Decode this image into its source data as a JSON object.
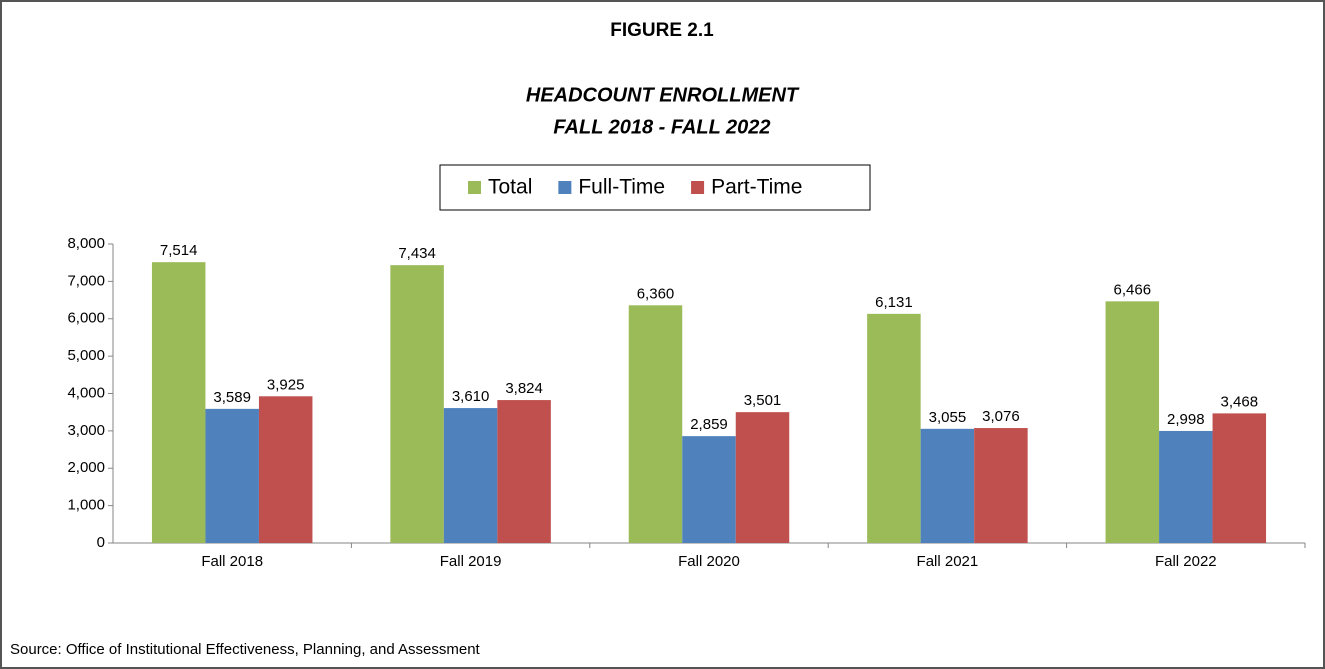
{
  "chart_data": {
    "type": "bar",
    "title": "FIGURE 2.1",
    "subtitle": [
      "HEADCOUNT ENROLLMENT",
      "FALL 2018 - FALL 2022"
    ],
    "categories": [
      "Fall 2018",
      "Fall 2019",
      "Fall 2020",
      "Fall 2021",
      "Fall 2022"
    ],
    "series": [
      {
        "name": "Total",
        "color": "#9bbb59",
        "values": [
          7514,
          7434,
          6360,
          6131,
          6466
        ],
        "value_labels": [
          "7,514",
          "7,434",
          "6,360",
          "6,131",
          "6,466"
        ]
      },
      {
        "name": "Full-Time",
        "color": "#4f81bd",
        "values": [
          3589,
          3610,
          2859,
          3055,
          2998
        ],
        "value_labels": [
          "3,589",
          "3,610",
          "2,859",
          "3,055",
          "2,998"
        ]
      },
      {
        "name": "Part-Time",
        "color": "#c0504d",
        "values": [
          3925,
          3824,
          3501,
          3076,
          3468
        ],
        "value_labels": [
          "3,925",
          "3,824",
          "3,501",
          "3,076",
          "3,468"
        ]
      }
    ],
    "ylim": [
      0,
      8000
    ],
    "yticks": [
      0,
      {
        "value": 1000,
        "label": "1,000"
      },
      {
        "value": 2000,
        "label": "2,000"
      },
      {
        "value": 3000,
        "label": "3,000"
      },
      {
        "value": 4000,
        "label": "4,000"
      },
      {
        "value": 5000,
        "label": "5,000"
      },
      {
        "value": 6000,
        "label": "6,000"
      },
      {
        "value": 7000,
        "label": "7,000"
      },
      {
        "value": 8000,
        "label": "8,000"
      }
    ],
    "grid": false,
    "legend": "top",
    "source": "Source: Office of Institutional Effectiveness, Planning, and Assessment"
  }
}
